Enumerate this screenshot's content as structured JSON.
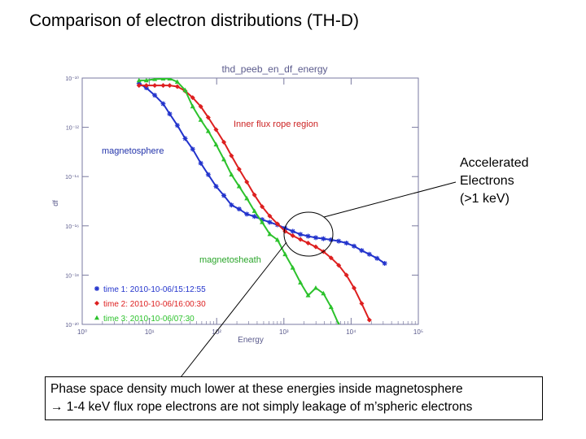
{
  "slide": {
    "title": "Comparison of electron distributions (TH-D)"
  },
  "chart_data": {
    "type": "line",
    "title": "thd_peeb_en_df_energy",
    "xlabel": "Energy",
    "ylabel": "df",
    "xscale": "log",
    "yscale": "log",
    "xlim": [
      1,
      100000
    ],
    "ylim": [
      1e-20,
      1e-10
    ],
    "x_ticks": [
      {
        "value": 1,
        "label": "10⁰"
      },
      {
        "value": 10,
        "label": "10¹"
      },
      {
        "value": 100,
        "label": "10²"
      },
      {
        "value": 1000,
        "label": "10³"
      },
      {
        "value": 10000,
        "label": "10⁴"
      },
      {
        "value": 100000,
        "label": "10⁵"
      }
    ],
    "y_ticks": [
      {
        "value": 1e-10,
        "label": "10⁻¹⁰"
      },
      {
        "value": 1e-12,
        "label": "10⁻¹²"
      },
      {
        "value": 1e-14,
        "label": "10⁻¹⁴"
      },
      {
        "value": 1e-16,
        "label": "10⁻¹⁶"
      },
      {
        "value": 1e-18,
        "label": "10⁻¹⁸"
      },
      {
        "value": 1e-20,
        "label": "10⁻²⁰"
      }
    ],
    "grid": false,
    "series": [
      {
        "name": "time 1: 2010-10-06/15:12:55",
        "color": "#2233cc",
        "x": [
          7,
          9,
          12,
          16,
          20,
          26,
          34,
          44,
          58,
          75,
          98,
          128,
          166,
          216,
          281,
          365,
          475,
          617,
          802,
          1043,
          1356,
          1763,
          2292,
          2979,
          3873,
          5035,
          6546,
          8510,
          11063,
          14382,
          18696,
          24305,
          31596
        ],
        "y": [
          6e-11,
          4e-11,
          2e-11,
          9e-12,
          3.5e-12,
          1.2e-12,
          3.5e-13,
          1.3e-13,
          3.5e-14,
          1.2e-14,
          4e-15,
          1.7e-15,
          7e-16,
          4.8e-16,
          3e-16,
          2.4e-16,
          1.8e-16,
          1.4e-16,
          1.1e-16,
          8e-17,
          6e-17,
          4.5e-17,
          3.8e-17,
          3.3e-17,
          3e-17,
          2.7e-17,
          2.4e-17,
          2e-17,
          1.5e-17,
          1e-17,
          7e-18,
          4.8e-18,
          3e-18
        ]
      },
      {
        "name": "time 2: 2010-10-06/16:00:30",
        "color": "#dd1f1f",
        "x": [
          7,
          9,
          12,
          16,
          20,
          26,
          34,
          44,
          58,
          75,
          98,
          128,
          166,
          216,
          281,
          365,
          475,
          617,
          802,
          1043,
          1356,
          1763,
          2292,
          2979,
          3873,
          5035,
          6546,
          8510,
          11063,
          14382,
          18696
        ],
        "y": [
          5e-11,
          5e-11,
          5e-11,
          5e-11,
          5e-11,
          4.5e-11,
          3e-11,
          1.6e-11,
          7e-12,
          2.5e-12,
          8e-13,
          2.5e-13,
          7e-14,
          2e-14,
          6e-15,
          1.8e-15,
          6e-16,
          2.5e-16,
          1.2e-16,
          6e-17,
          4e-17,
          2.8e-17,
          2e-17,
          1.4e-17,
          9e-18,
          5e-18,
          2.5e-18,
          1e-18,
          3e-19,
          7e-20,
          1.5e-20
        ]
      },
      {
        "name": "time 3: 2010-10-06/07:30",
        "color": "#2cc22c",
        "x": [
          7,
          9,
          12,
          16,
          20,
          26,
          34,
          44,
          58,
          75,
          98,
          128,
          166,
          216,
          281,
          365,
          475,
          617,
          802,
          1043,
          1356,
          1763,
          2292,
          2979,
          3873,
          5035,
          6546,
          8510
        ],
        "y": [
          8e-11,
          8e-11,
          9e-11,
          9.5e-11,
          9.5e-11,
          7e-11,
          3.2e-11,
          7e-12,
          2e-12,
          7e-13,
          2e-13,
          5e-14,
          1.2e-14,
          4e-15,
          1.3e-15,
          4e-16,
          1.4e-16,
          4.6e-17,
          2.7e-17,
          7e-18,
          2e-18,
          5e-19,
          1.5e-19,
          3e-19,
          1.8e-19,
          5e-20,
          1e-20,
          5e-21
        ]
      }
    ],
    "annotations": {
      "inner": "Inner flux rope region",
      "magnetosphere": "magnetosphere",
      "magnetosheath": "magnetosheath"
    }
  },
  "callout": {
    "lines": [
      "Accelerated",
      "Electrons",
      "(>1 keV)"
    ]
  },
  "note": {
    "line1": "Phase space density much lower at these energies inside magnetosphere",
    "line2": "→ 1-4 keV flux rope electrons are not simply leakage of m’spheric electrons"
  }
}
